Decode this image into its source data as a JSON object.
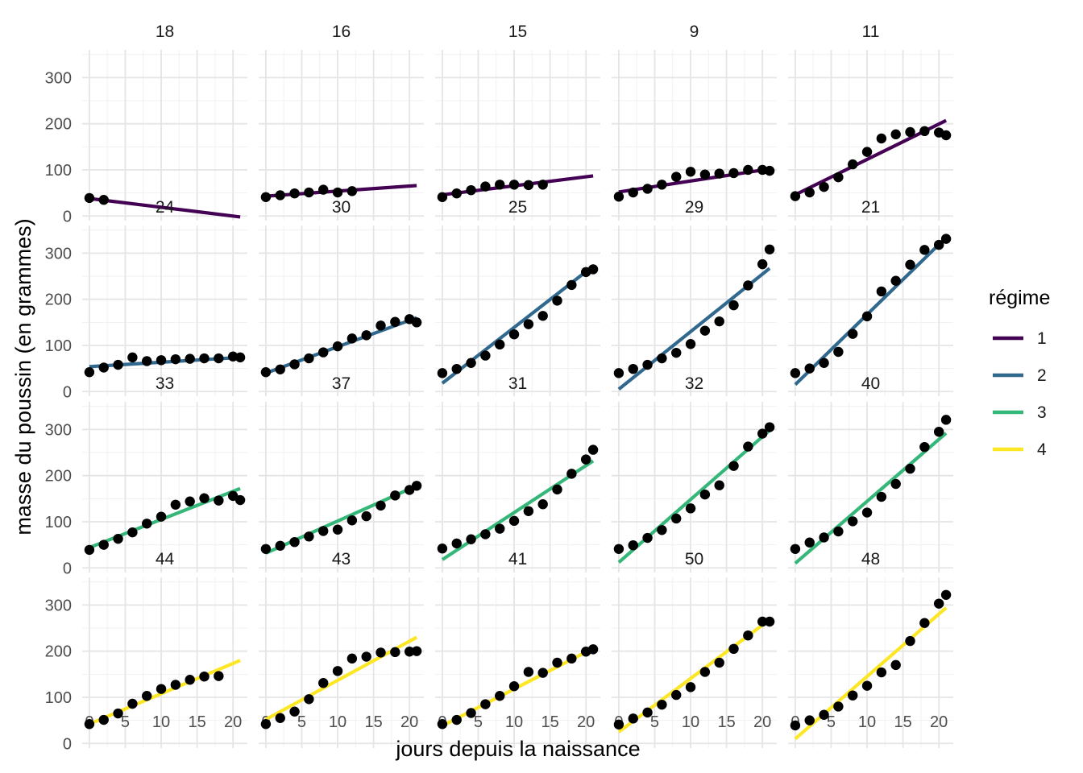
{
  "chart_data": {
    "type": "scatter",
    "xlabel": "jours depuis la naissance",
    "ylabel": "masse du poussin (en grammes)",
    "xlim": [
      -1,
      22
    ],
    "ylim": [
      -10,
      360
    ],
    "x_ticks": [
      0,
      5,
      10,
      15,
      20
    ],
    "y_ticks": [
      0,
      100,
      200,
      300
    ],
    "grid": true,
    "legend": {
      "title": "régime",
      "position": "right",
      "entries": [
        {
          "label": "1",
          "color": "#440154"
        },
        {
          "label": "2",
          "color": "#31688E"
        },
        {
          "label": "3",
          "color": "#35B779"
        },
        {
          "label": "4",
          "color": "#FDE725"
        }
      ]
    },
    "point_color": "#000000",
    "panels": [
      {
        "chick": "18",
        "diet": "1",
        "line": [
          [
            0,
            38
          ],
          [
            21,
            -2
          ]
        ],
        "points": [
          [
            0,
            39
          ],
          [
            2,
            35
          ]
        ]
      },
      {
        "chick": "16",
        "diet": "1",
        "line": [
          [
            0,
            43
          ],
          [
            21,
            66
          ]
        ],
        "points": [
          [
            0,
            41
          ],
          [
            2,
            45
          ],
          [
            4,
            49
          ],
          [
            6,
            51
          ],
          [
            8,
            57
          ],
          [
            10,
            51
          ],
          [
            12,
            54
          ]
        ]
      },
      {
        "chick": "15",
        "diet": "1",
        "line": [
          [
            0,
            46
          ],
          [
            21,
            87
          ]
        ],
        "points": [
          [
            0,
            41
          ],
          [
            2,
            49
          ],
          [
            4,
            56
          ],
          [
            6,
            64
          ],
          [
            8,
            68
          ],
          [
            10,
            68
          ],
          [
            12,
            67
          ],
          [
            14,
            68
          ]
        ]
      },
      {
        "chick": "9",
        "diet": "1",
        "line": [
          [
            0,
            52
          ],
          [
            21,
            102
          ]
        ],
        "points": [
          [
            0,
            42
          ],
          [
            2,
            51
          ],
          [
            4,
            59
          ],
          [
            6,
            68
          ],
          [
            8,
            85
          ],
          [
            10,
            96
          ],
          [
            12,
            90
          ],
          [
            14,
            92
          ],
          [
            16,
            93
          ],
          [
            18,
            100
          ],
          [
            20,
            100
          ],
          [
            21,
            98
          ]
        ]
      },
      {
        "chick": "11",
        "diet": "1",
        "line": [
          [
            0,
            46
          ],
          [
            21,
            207
          ]
        ],
        "points": [
          [
            0,
            43
          ],
          [
            2,
            51
          ],
          [
            4,
            63
          ],
          [
            6,
            84
          ],
          [
            8,
            112
          ],
          [
            10,
            139
          ],
          [
            12,
            168
          ],
          [
            14,
            177
          ],
          [
            16,
            182
          ],
          [
            18,
            184
          ],
          [
            20,
            181
          ],
          [
            21,
            175
          ]
        ]
      },
      {
        "chick": "24",
        "diet": "2",
        "line": [
          [
            0,
            54
          ],
          [
            21,
            74
          ]
        ],
        "points": [
          [
            0,
            42
          ],
          [
            2,
            52
          ],
          [
            4,
            58
          ],
          [
            6,
            74
          ],
          [
            8,
            66
          ],
          [
            10,
            68
          ],
          [
            12,
            70
          ],
          [
            14,
            71
          ],
          [
            16,
            72
          ],
          [
            18,
            72
          ],
          [
            20,
            76
          ],
          [
            21,
            74
          ]
        ]
      },
      {
        "chick": "30",
        "diet": "2",
        "line": [
          [
            0,
            40
          ],
          [
            21,
            160
          ]
        ],
        "points": [
          [
            0,
            42
          ],
          [
            2,
            48
          ],
          [
            4,
            59
          ],
          [
            6,
            72
          ],
          [
            8,
            85
          ],
          [
            10,
            98
          ],
          [
            12,
            115
          ],
          [
            14,
            122
          ],
          [
            16,
            143
          ],
          [
            18,
            151
          ],
          [
            20,
            157
          ],
          [
            21,
            150
          ]
        ]
      },
      {
        "chick": "25",
        "diet": "2",
        "line": [
          [
            0,
            18
          ],
          [
            21,
            272
          ]
        ],
        "points": [
          [
            0,
            40
          ],
          [
            2,
            49
          ],
          [
            4,
            62
          ],
          [
            6,
            78
          ],
          [
            8,
            102
          ],
          [
            10,
            124
          ],
          [
            12,
            146
          ],
          [
            14,
            164
          ],
          [
            16,
            197
          ],
          [
            18,
            231
          ],
          [
            20,
            259
          ],
          [
            21,
            265
          ]
        ]
      },
      {
        "chick": "29",
        "diet": "2",
        "line": [
          [
            0,
            5
          ],
          [
            21,
            267
          ]
        ],
        "points": [
          [
            0,
            40
          ],
          [
            2,
            49
          ],
          [
            4,
            58
          ],
          [
            6,
            72
          ],
          [
            8,
            84
          ],
          [
            10,
            103
          ],
          [
            12,
            132
          ],
          [
            14,
            152
          ],
          [
            16,
            187
          ],
          [
            18,
            230
          ],
          [
            20,
            276
          ],
          [
            21,
            308
          ]
        ]
      },
      {
        "chick": "21",
        "diet": "2",
        "line": [
          [
            0,
            15
          ],
          [
            21,
            334
          ]
        ],
        "points": [
          [
            0,
            40
          ],
          [
            2,
            50
          ],
          [
            4,
            62
          ],
          [
            6,
            86
          ],
          [
            8,
            125
          ],
          [
            10,
            163
          ],
          [
            12,
            217
          ],
          [
            14,
            240
          ],
          [
            16,
            275
          ],
          [
            18,
            307
          ],
          [
            20,
            318
          ],
          [
            21,
            331
          ]
        ]
      },
      {
        "chick": "33",
        "diet": "3",
        "line": [
          [
            0,
            44
          ],
          [
            21,
            172
          ]
        ],
        "points": [
          [
            0,
            39
          ],
          [
            2,
            50
          ],
          [
            4,
            63
          ],
          [
            6,
            77
          ],
          [
            8,
            96
          ],
          [
            10,
            111
          ],
          [
            12,
            137
          ],
          [
            14,
            144
          ],
          [
            16,
            151
          ],
          [
            18,
            146
          ],
          [
            20,
            156
          ],
          [
            21,
            147
          ]
        ]
      },
      {
        "chick": "37",
        "diet": "3",
        "line": [
          [
            0,
            32
          ],
          [
            21,
            178
          ]
        ],
        "points": [
          [
            0,
            41
          ],
          [
            2,
            48
          ],
          [
            4,
            56
          ],
          [
            6,
            68
          ],
          [
            8,
            80
          ],
          [
            10,
            83
          ],
          [
            12,
            103
          ],
          [
            14,
            112
          ],
          [
            16,
            135
          ],
          [
            18,
            157
          ],
          [
            20,
            169
          ],
          [
            21,
            178
          ]
        ]
      },
      {
        "chick": "31",
        "diet": "3",
        "line": [
          [
            0,
            18
          ],
          [
            21,
            232
          ]
        ],
        "points": [
          [
            0,
            42
          ],
          [
            2,
            53
          ],
          [
            4,
            62
          ],
          [
            6,
            73
          ],
          [
            8,
            85
          ],
          [
            10,
            102
          ],
          [
            12,
            123
          ],
          [
            14,
            138
          ],
          [
            16,
            170
          ],
          [
            18,
            204
          ],
          [
            20,
            235
          ],
          [
            21,
            256
          ]
        ]
      },
      {
        "chick": "32",
        "diet": "3",
        "line": [
          [
            0,
            12
          ],
          [
            21,
            298
          ]
        ],
        "points": [
          [
            0,
            41
          ],
          [
            2,
            49
          ],
          [
            4,
            65
          ],
          [
            6,
            82
          ],
          [
            8,
            107
          ],
          [
            10,
            129
          ],
          [
            12,
            159
          ],
          [
            14,
            179
          ],
          [
            16,
            221
          ],
          [
            18,
            263
          ],
          [
            20,
            291
          ],
          [
            21,
            305
          ]
        ]
      },
      {
        "chick": "40",
        "diet": "3",
        "line": [
          [
            0,
            10
          ],
          [
            21,
            292
          ]
        ],
        "points": [
          [
            0,
            41
          ],
          [
            2,
            55
          ],
          [
            4,
            66
          ],
          [
            6,
            79
          ],
          [
            8,
            101
          ],
          [
            10,
            120
          ],
          [
            12,
            154
          ],
          [
            14,
            182
          ],
          [
            16,
            215
          ],
          [
            18,
            262
          ],
          [
            20,
            295
          ],
          [
            21,
            321
          ]
        ]
      },
      {
        "chick": "44",
        "diet": "4",
        "line": [
          [
            0,
            42
          ],
          [
            21,
            180
          ]
        ],
        "points": [
          [
            0,
            42
          ],
          [
            2,
            51
          ],
          [
            4,
            65
          ],
          [
            6,
            86
          ],
          [
            8,
            103
          ],
          [
            10,
            118
          ],
          [
            12,
            127
          ],
          [
            14,
            138
          ],
          [
            16,
            145
          ],
          [
            18,
            146
          ]
        ]
      },
      {
        "chick": "43",
        "diet": "4",
        "line": [
          [
            0,
            52
          ],
          [
            21,
            230
          ]
        ],
        "points": [
          [
            0,
            42
          ],
          [
            2,
            55
          ],
          [
            4,
            69
          ],
          [
            6,
            96
          ],
          [
            8,
            131
          ],
          [
            10,
            157
          ],
          [
            12,
            184
          ],
          [
            14,
            188
          ],
          [
            16,
            197
          ],
          [
            18,
            198
          ],
          [
            20,
            199
          ],
          [
            21,
            200
          ]
        ]
      },
      {
        "chick": "41",
        "diet": "4",
        "line": [
          [
            0,
            38
          ],
          [
            21,
            206
          ]
        ],
        "points": [
          [
            0,
            42
          ],
          [
            2,
            51
          ],
          [
            4,
            66
          ],
          [
            6,
            85
          ],
          [
            8,
            103
          ],
          [
            10,
            124
          ],
          [
            12,
            155
          ],
          [
            14,
            153
          ],
          [
            16,
            175
          ],
          [
            18,
            184
          ],
          [
            20,
            199
          ],
          [
            21,
            204
          ]
        ]
      },
      {
        "chick": "50",
        "diet": "4",
        "line": [
          [
            0,
            25
          ],
          [
            21,
            268
          ]
        ],
        "points": [
          [
            0,
            41
          ],
          [
            2,
            54
          ],
          [
            4,
            67
          ],
          [
            6,
            84
          ],
          [
            8,
            105
          ],
          [
            10,
            122
          ],
          [
            12,
            155
          ],
          [
            14,
            175
          ],
          [
            16,
            205
          ],
          [
            18,
            234
          ],
          [
            20,
            264
          ],
          [
            21,
            264
          ]
        ]
      },
      {
        "chick": "48",
        "diet": "4",
        "line": [
          [
            0,
            10
          ],
          [
            21,
            294
          ]
        ],
        "points": [
          [
            0,
            39
          ],
          [
            2,
            50
          ],
          [
            4,
            62
          ],
          [
            6,
            80
          ],
          [
            8,
            104
          ],
          [
            10,
            125
          ],
          [
            12,
            154
          ],
          [
            14,
            170
          ],
          [
            16,
            222
          ],
          [
            18,
            261
          ],
          [
            20,
            303
          ],
          [
            21,
            322
          ]
        ]
      }
    ]
  }
}
